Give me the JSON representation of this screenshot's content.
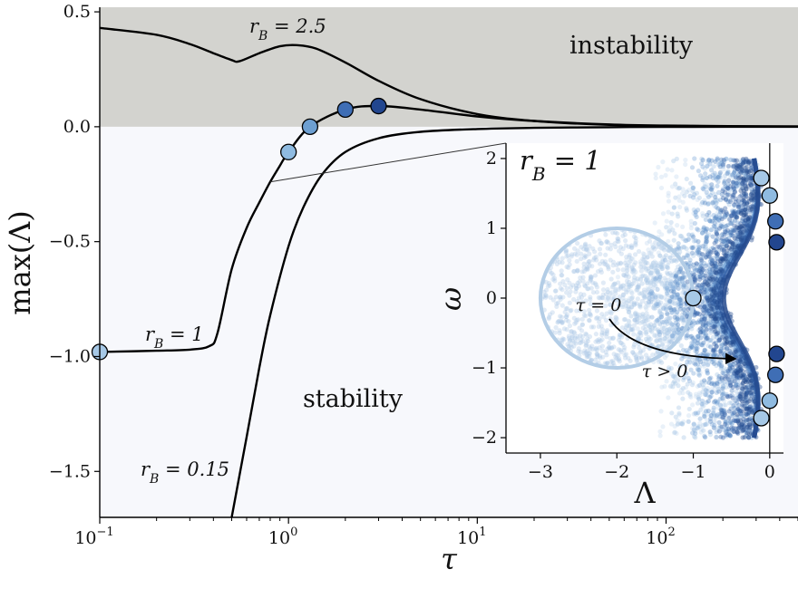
{
  "chart_data": [
    {
      "type": "line",
      "xlabel": "τ",
      "ylabel": "max(Λ)",
      "xscale": "log",
      "xlim": [
        0.1,
        500
      ],
      "ylim": [
        -1.7,
        0.52
      ],
      "xticks": [
        {
          "value": 0.1,
          "label": "10",
          "exp": "−1"
        },
        {
          "value": 1,
          "label": "10",
          "exp": "0"
        },
        {
          "value": 10,
          "label": "10",
          "exp": "1"
        },
        {
          "value": 100,
          "label": "10",
          "exp": "2"
        }
      ],
      "yticks": [
        {
          "value": 0.5,
          "label": "0.5"
        },
        {
          "value": 0.0,
          "label": "0.0"
        },
        {
          "value": -0.5,
          "label": "−0.5"
        },
        {
          "value": -1.0,
          "label": "−1.0"
        },
        {
          "value": -1.5,
          "label": "−1.5"
        }
      ],
      "regions": {
        "instability_label": "instability",
        "stability_label": "stability",
        "instability_color": "#d3d3cf",
        "stability_color": "#f7f8fc"
      },
      "series": [
        {
          "name": "r_B = 2.5",
          "label": "r",
          "label_sub": "B",
          "label_rest": " = 2.5",
          "x": [
            0.1,
            0.2,
            0.3,
            0.4,
            0.5,
            0.55,
            0.7,
            0.9,
            1.1,
            1.4,
            2,
            3,
            5,
            10,
            20,
            50,
            100,
            200,
            500
          ],
          "y": [
            0.43,
            0.4,
            0.36,
            0.32,
            0.29,
            0.285,
            0.32,
            0.35,
            0.355,
            0.34,
            0.28,
            0.2,
            0.12,
            0.055,
            0.025,
            0.008,
            0.004,
            0.002,
            0.001
          ]
        },
        {
          "name": "r_B = 1",
          "label": "r",
          "label_sub": "B",
          "label_rest": " = 1",
          "x": [
            0.1,
            0.2,
            0.3,
            0.38,
            0.42,
            0.5,
            0.6,
            0.7,
            0.8,
            0.9,
            1.0,
            1.3,
            2,
            3,
            5,
            10,
            20,
            50,
            100,
            500
          ],
          "y": [
            -0.98,
            -0.975,
            -0.97,
            -0.955,
            -0.9,
            -0.62,
            -0.44,
            -0.33,
            -0.24,
            -0.17,
            -0.11,
            0.0,
            0.075,
            0.09,
            0.075,
            0.045,
            0.025,
            0.01,
            0.005,
            0.001
          ]
        },
        {
          "name": "r_B = 0.15",
          "label": "r",
          "label_sub": "B",
          "label_rest": " = 0.15",
          "x": [
            0.5,
            0.6,
            0.7,
            0.8,
            1.0,
            1.2,
            1.5,
            2,
            3,
            5,
            10,
            20,
            50,
            100,
            500
          ],
          "y": [
            -1.7,
            -1.35,
            -1.05,
            -0.82,
            -0.52,
            -0.35,
            -0.21,
            -0.11,
            -0.05,
            -0.022,
            -0.01,
            -0.005,
            -0.002,
            -0.001,
            0.0
          ]
        }
      ],
      "markers": [
        {
          "x": 0.1,
          "y": -0.98,
          "color": "#a6c8e6"
        },
        {
          "x": 1.0,
          "y": -0.11,
          "color": "#8fbbe1"
        },
        {
          "x": 1.3,
          "y": 0.0,
          "color": "#6d9fd1"
        },
        {
          "x": 2.0,
          "y": 0.075,
          "color": "#3f6eb5"
        },
        {
          "x": 3.0,
          "y": 0.09,
          "color": "#22468f"
        }
      ],
      "zoom_link": {
        "from_x": 0.8,
        "from_y": -0.24
      }
    },
    {
      "type": "scatter",
      "title": "r",
      "title_sub": "B",
      "title_rest": " = 1",
      "xlabel": "Λ",
      "ylabel": "ω",
      "xlim": [
        -3.45,
        0.18
      ],
      "ylim": [
        -2.22,
        2.22
      ],
      "xticks": [
        {
          "value": -3,
          "label": "−3"
        },
        {
          "value": -2,
          "label": "−2"
        },
        {
          "value": -1,
          "label": "−1"
        },
        {
          "value": 0,
          "label": "0"
        }
      ],
      "yticks": [
        {
          "value": 2,
          "label": "2"
        },
        {
          "value": 1,
          "label": "1"
        },
        {
          "value": 0,
          "label": "0"
        },
        {
          "value": -1,
          "label": "−1"
        },
        {
          "value": -2,
          "label": "−2"
        }
      ],
      "circle": {
        "center_x": -2.0,
        "center_y": 0.0,
        "radius": 1.0,
        "color": "#b3cde6"
      },
      "arrow_labels": {
        "start": "τ = 0",
        "end": "τ > 0"
      },
      "markers": [
        {
          "x": -1.0,
          "y": 0.0,
          "color": "#a6c8e6"
        },
        {
          "x": -0.11,
          "y": 1.72,
          "color": "#a6c8e6"
        },
        {
          "x": -0.11,
          "y": -1.72,
          "color": "#a6c8e6"
        },
        {
          "x": 0.0,
          "y": 1.47,
          "color": "#8fbbe1"
        },
        {
          "x": 0.0,
          "y": -1.47,
          "color": "#8fbbe1"
        },
        {
          "x": 0.075,
          "y": 1.1,
          "color": "#3f6eb5"
        },
        {
          "x": 0.075,
          "y": -1.1,
          "color": "#3f6eb5"
        },
        {
          "x": 0.09,
          "y": 0.8,
          "color": "#22468f"
        },
        {
          "x": 0.09,
          "y": -0.8,
          "color": "#22468f"
        }
      ]
    }
  ]
}
